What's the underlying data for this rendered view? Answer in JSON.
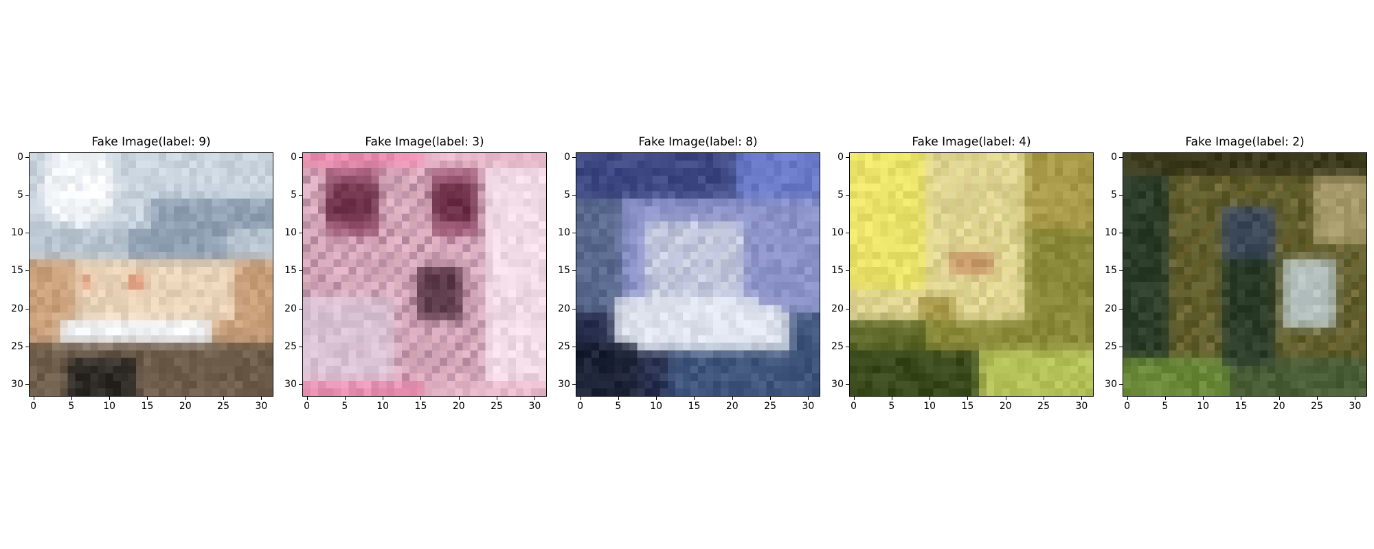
{
  "panels": [
    {
      "title": "Fake Image(label: 9)",
      "palette": [
        "#f2f5f8",
        "#c9d4de",
        "#8fa0b3",
        "#e9d3b8",
        "#caa07a",
        "#6f5e4c",
        "#2e2b27",
        "#b7c4cf",
        "#d98c6a",
        "#a9a095"
      ],
      "layout": "sky-car"
    },
    {
      "title": "Fake Image(label: 3)",
      "palette": [
        "#e6b8c9",
        "#c98aa6",
        "#6e3048",
        "#9f5b78",
        "#d9c2d3",
        "#f0dbe6",
        "#a87d93",
        "#5e3b4a",
        "#e98fb0",
        "#b9a0b5"
      ],
      "layout": "pink-face"
    },
    {
      "title": "Fake Image(label: 8)",
      "palette": [
        "#3f4a85",
        "#6a7ac8",
        "#8c93c9",
        "#b8bdd6",
        "#dfe4ee",
        "#2a3150",
        "#1c2235",
        "#5a6b8f",
        "#9fb4d6",
        "#41567c"
      ],
      "layout": "blue-ship"
    },
    {
      "title": "Fake Image(label: 4)",
      "palette": [
        "#e9e36a",
        "#d9d18a",
        "#c9b97a",
        "#e8d9a0",
        "#a99a4a",
        "#5f6a2a",
        "#3a4a1d",
        "#c99a6a",
        "#8a8a3a",
        "#b5c25a"
      ],
      "layout": "yellow-deer"
    },
    {
      "title": "Fake Image(label: 2)",
      "palette": [
        "#3b3a1c",
        "#5c5a2a",
        "#7a6f3a",
        "#a69a6a",
        "#2c3d2a",
        "#4a5e38",
        "#3d4a5a",
        "#8a9aa6",
        "#6a8a3a",
        "#b6c2bf"
      ],
      "layout": "green-bird"
    }
  ],
  "axis": {
    "x_ticks": [
      "0",
      "5",
      "10",
      "15",
      "20",
      "25",
      "30"
    ],
    "y_ticks": [
      "0",
      "5",
      "10",
      "15",
      "20",
      "25",
      "30"
    ],
    "grid_size": 32
  }
}
